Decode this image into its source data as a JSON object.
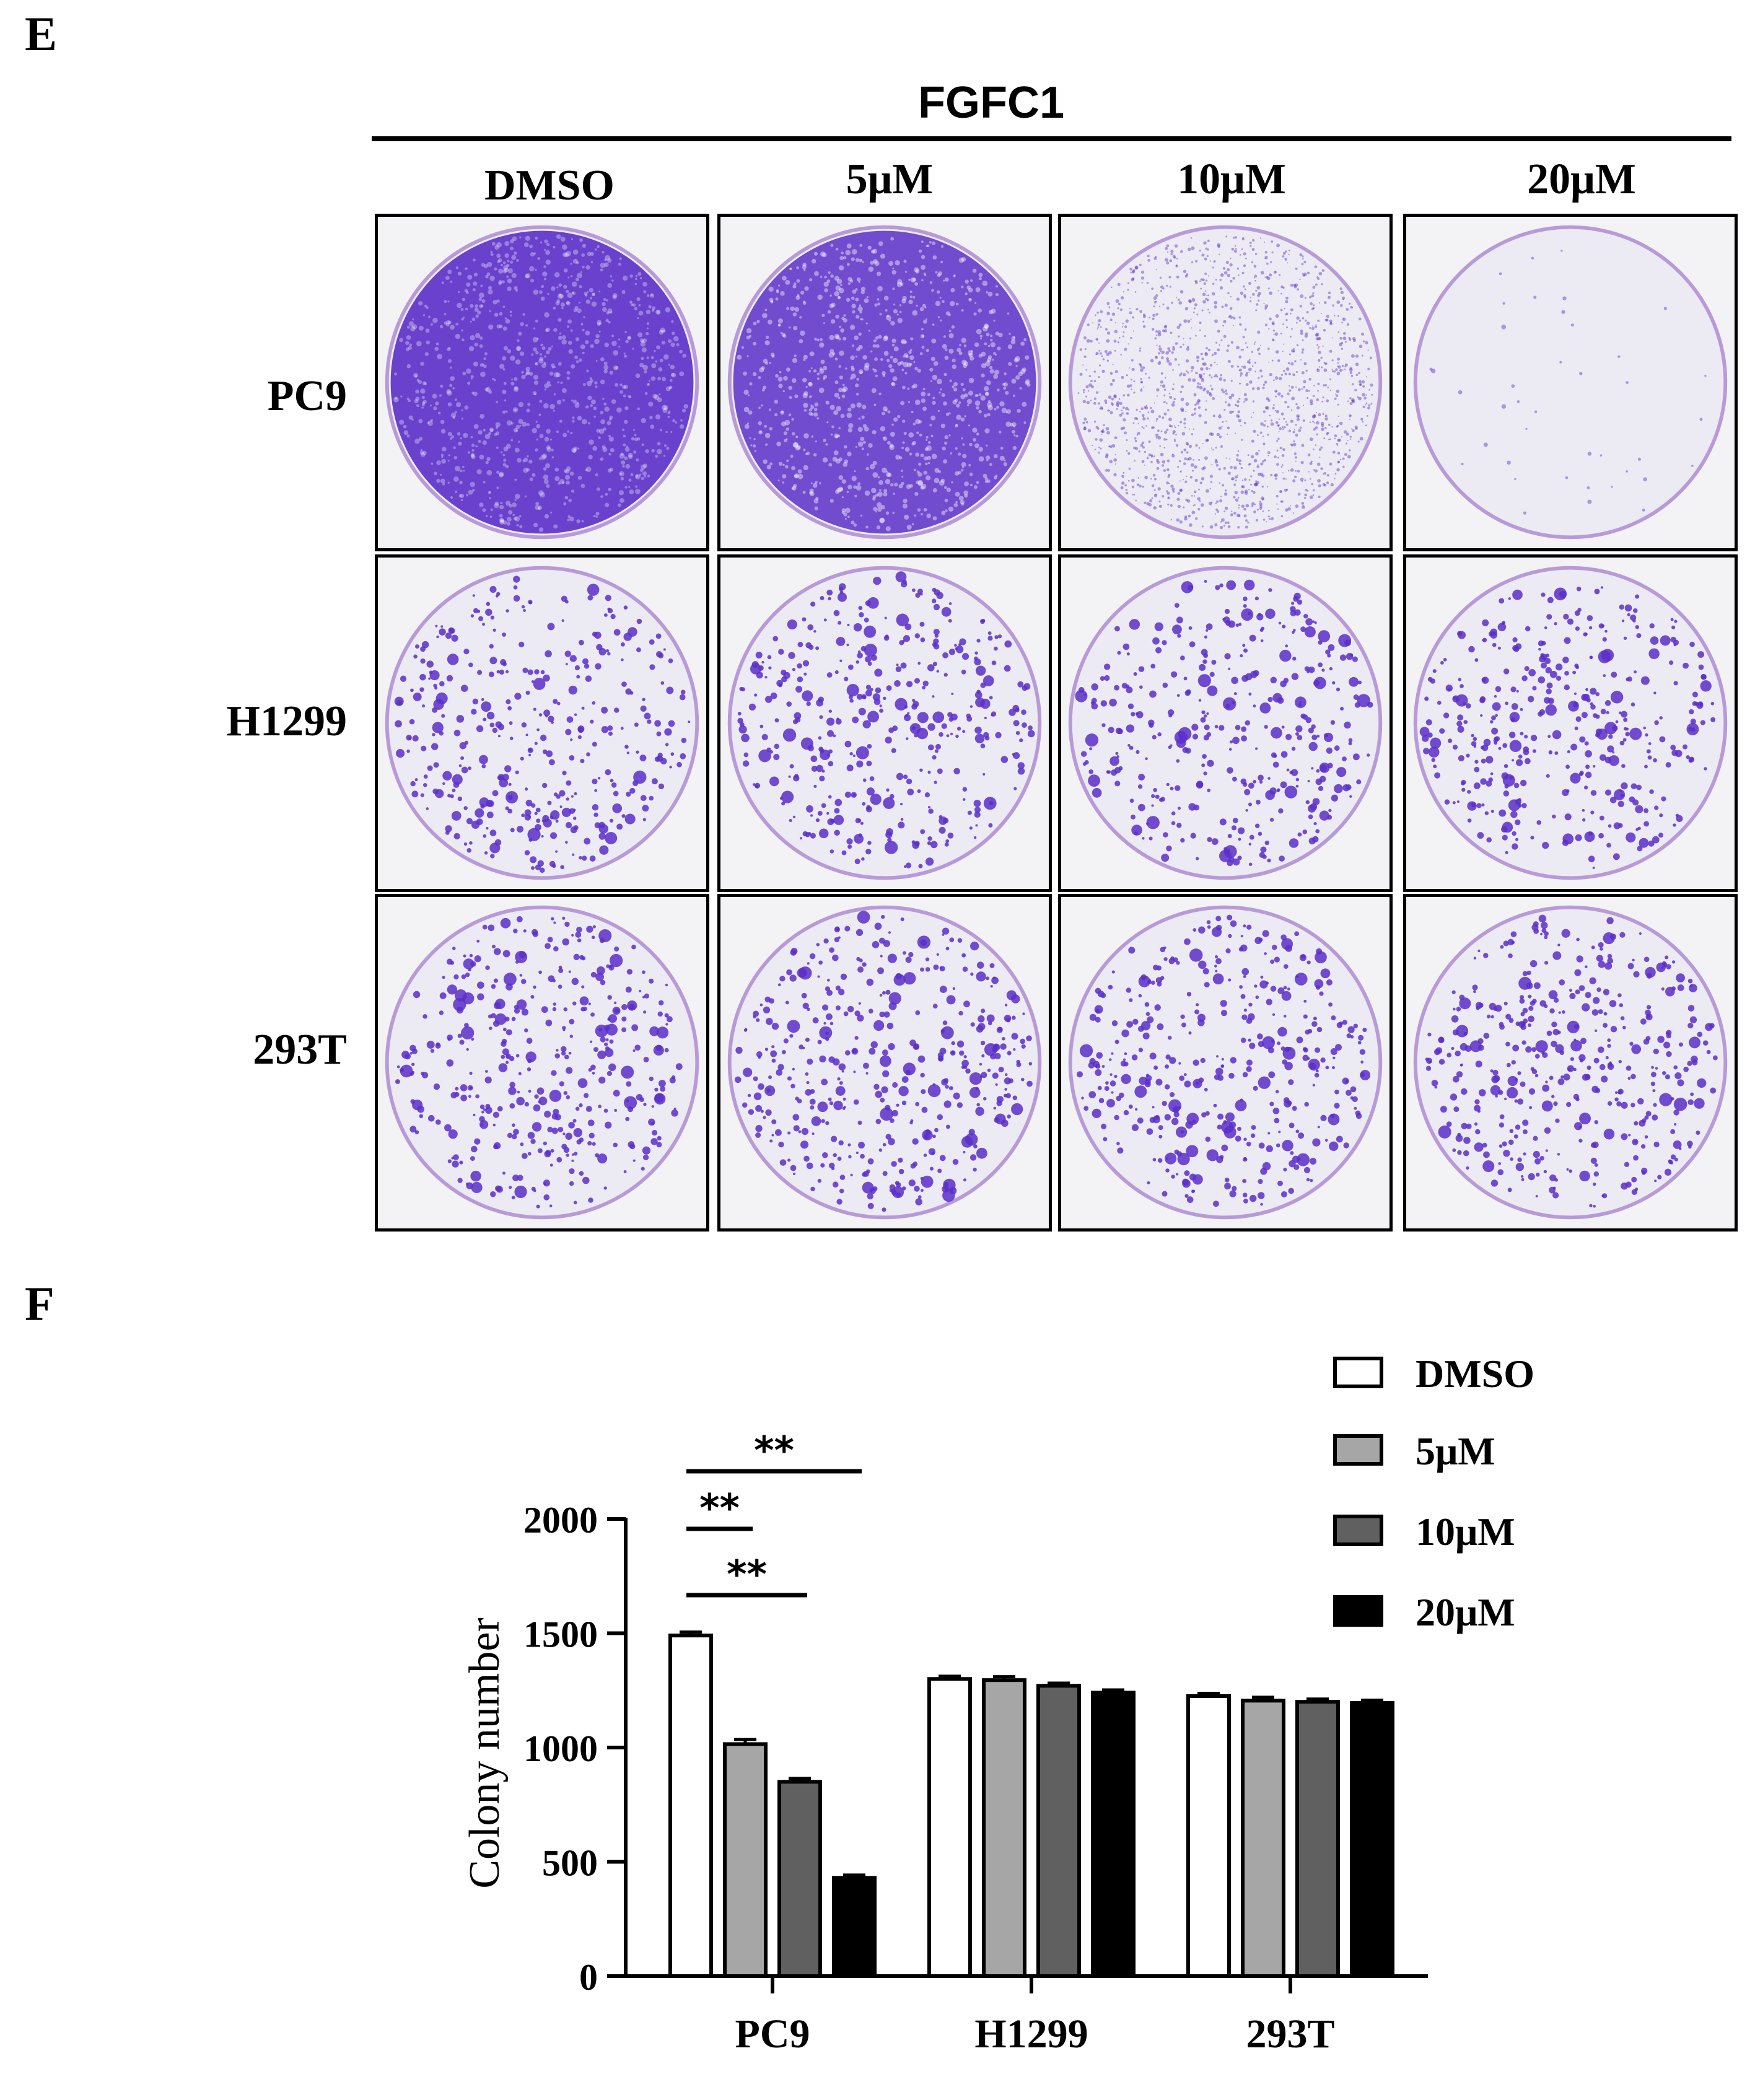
{
  "panel_e": {
    "letter": "E",
    "treatment_label": "FGFC1",
    "columns": [
      "DMSO",
      "5μM",
      "10μM",
      "20μM"
    ],
    "rows": [
      "PC9",
      "H1299",
      "293T"
    ],
    "wells": [
      [
        {
          "density": 1.0,
          "style": "dense"
        },
        {
          "density": 0.85,
          "style": "dense"
        },
        {
          "density": 0.45,
          "style": "fine"
        },
        {
          "density": 0.05,
          "style": "sparse"
        }
      ],
      [
        {
          "density": 0.5,
          "style": "colonies"
        },
        {
          "density": 0.55,
          "style": "colonies"
        },
        {
          "density": 0.5,
          "style": "colonies"
        },
        {
          "density": 0.55,
          "style": "colonies"
        }
      ],
      [
        {
          "density": 0.55,
          "style": "colonies"
        },
        {
          "density": 0.6,
          "style": "colonies"
        },
        {
          "density": 0.55,
          "style": "colonies"
        },
        {
          "density": 0.6,
          "style": "colonies"
        }
      ]
    ],
    "stain_color": "#5b2fc9",
    "plate_background": "#ecebf3"
  },
  "panel_f": {
    "letter": "F"
  },
  "chart_data": {
    "type": "bar",
    "categories": [
      "PC9",
      "H1299",
      "293T"
    ],
    "series": [
      {
        "name": "DMSO",
        "values": [
          1490,
          1300,
          1225
        ],
        "errors": [
          15,
          12,
          12
        ],
        "color": "#ffffff"
      },
      {
        "name": "5μM",
        "values": [
          1015,
          1295,
          1205
        ],
        "errors": [
          20,
          15,
          15
        ],
        "color": "#a6a6a6"
      },
      {
        "name": "10μM",
        "values": [
          850,
          1270,
          1200
        ],
        "errors": [
          15,
          12,
          12
        ],
        "color": "#606060"
      },
      {
        "name": "20μM",
        "values": [
          430,
          1240,
          1195
        ],
        "errors": [
          12,
          12,
          12
        ],
        "color": "#000000"
      }
    ],
    "xlabel": "",
    "ylabel": "Colony number",
    "ylim": [
      0,
      2000
    ],
    "yticks": [
      0,
      500,
      1000,
      1500,
      2000
    ],
    "legend_placement": "top-right",
    "significance": [
      {
        "category": "PC9",
        "from_series": "DMSO",
        "to_series": "10μM",
        "label": "**"
      },
      {
        "category": "PC9",
        "from_series": "DMSO",
        "to_series": "5μM",
        "label": "**"
      },
      {
        "category": "PC9",
        "from_series": "DMSO",
        "to_series": "20μM",
        "label": "**"
      }
    ]
  }
}
